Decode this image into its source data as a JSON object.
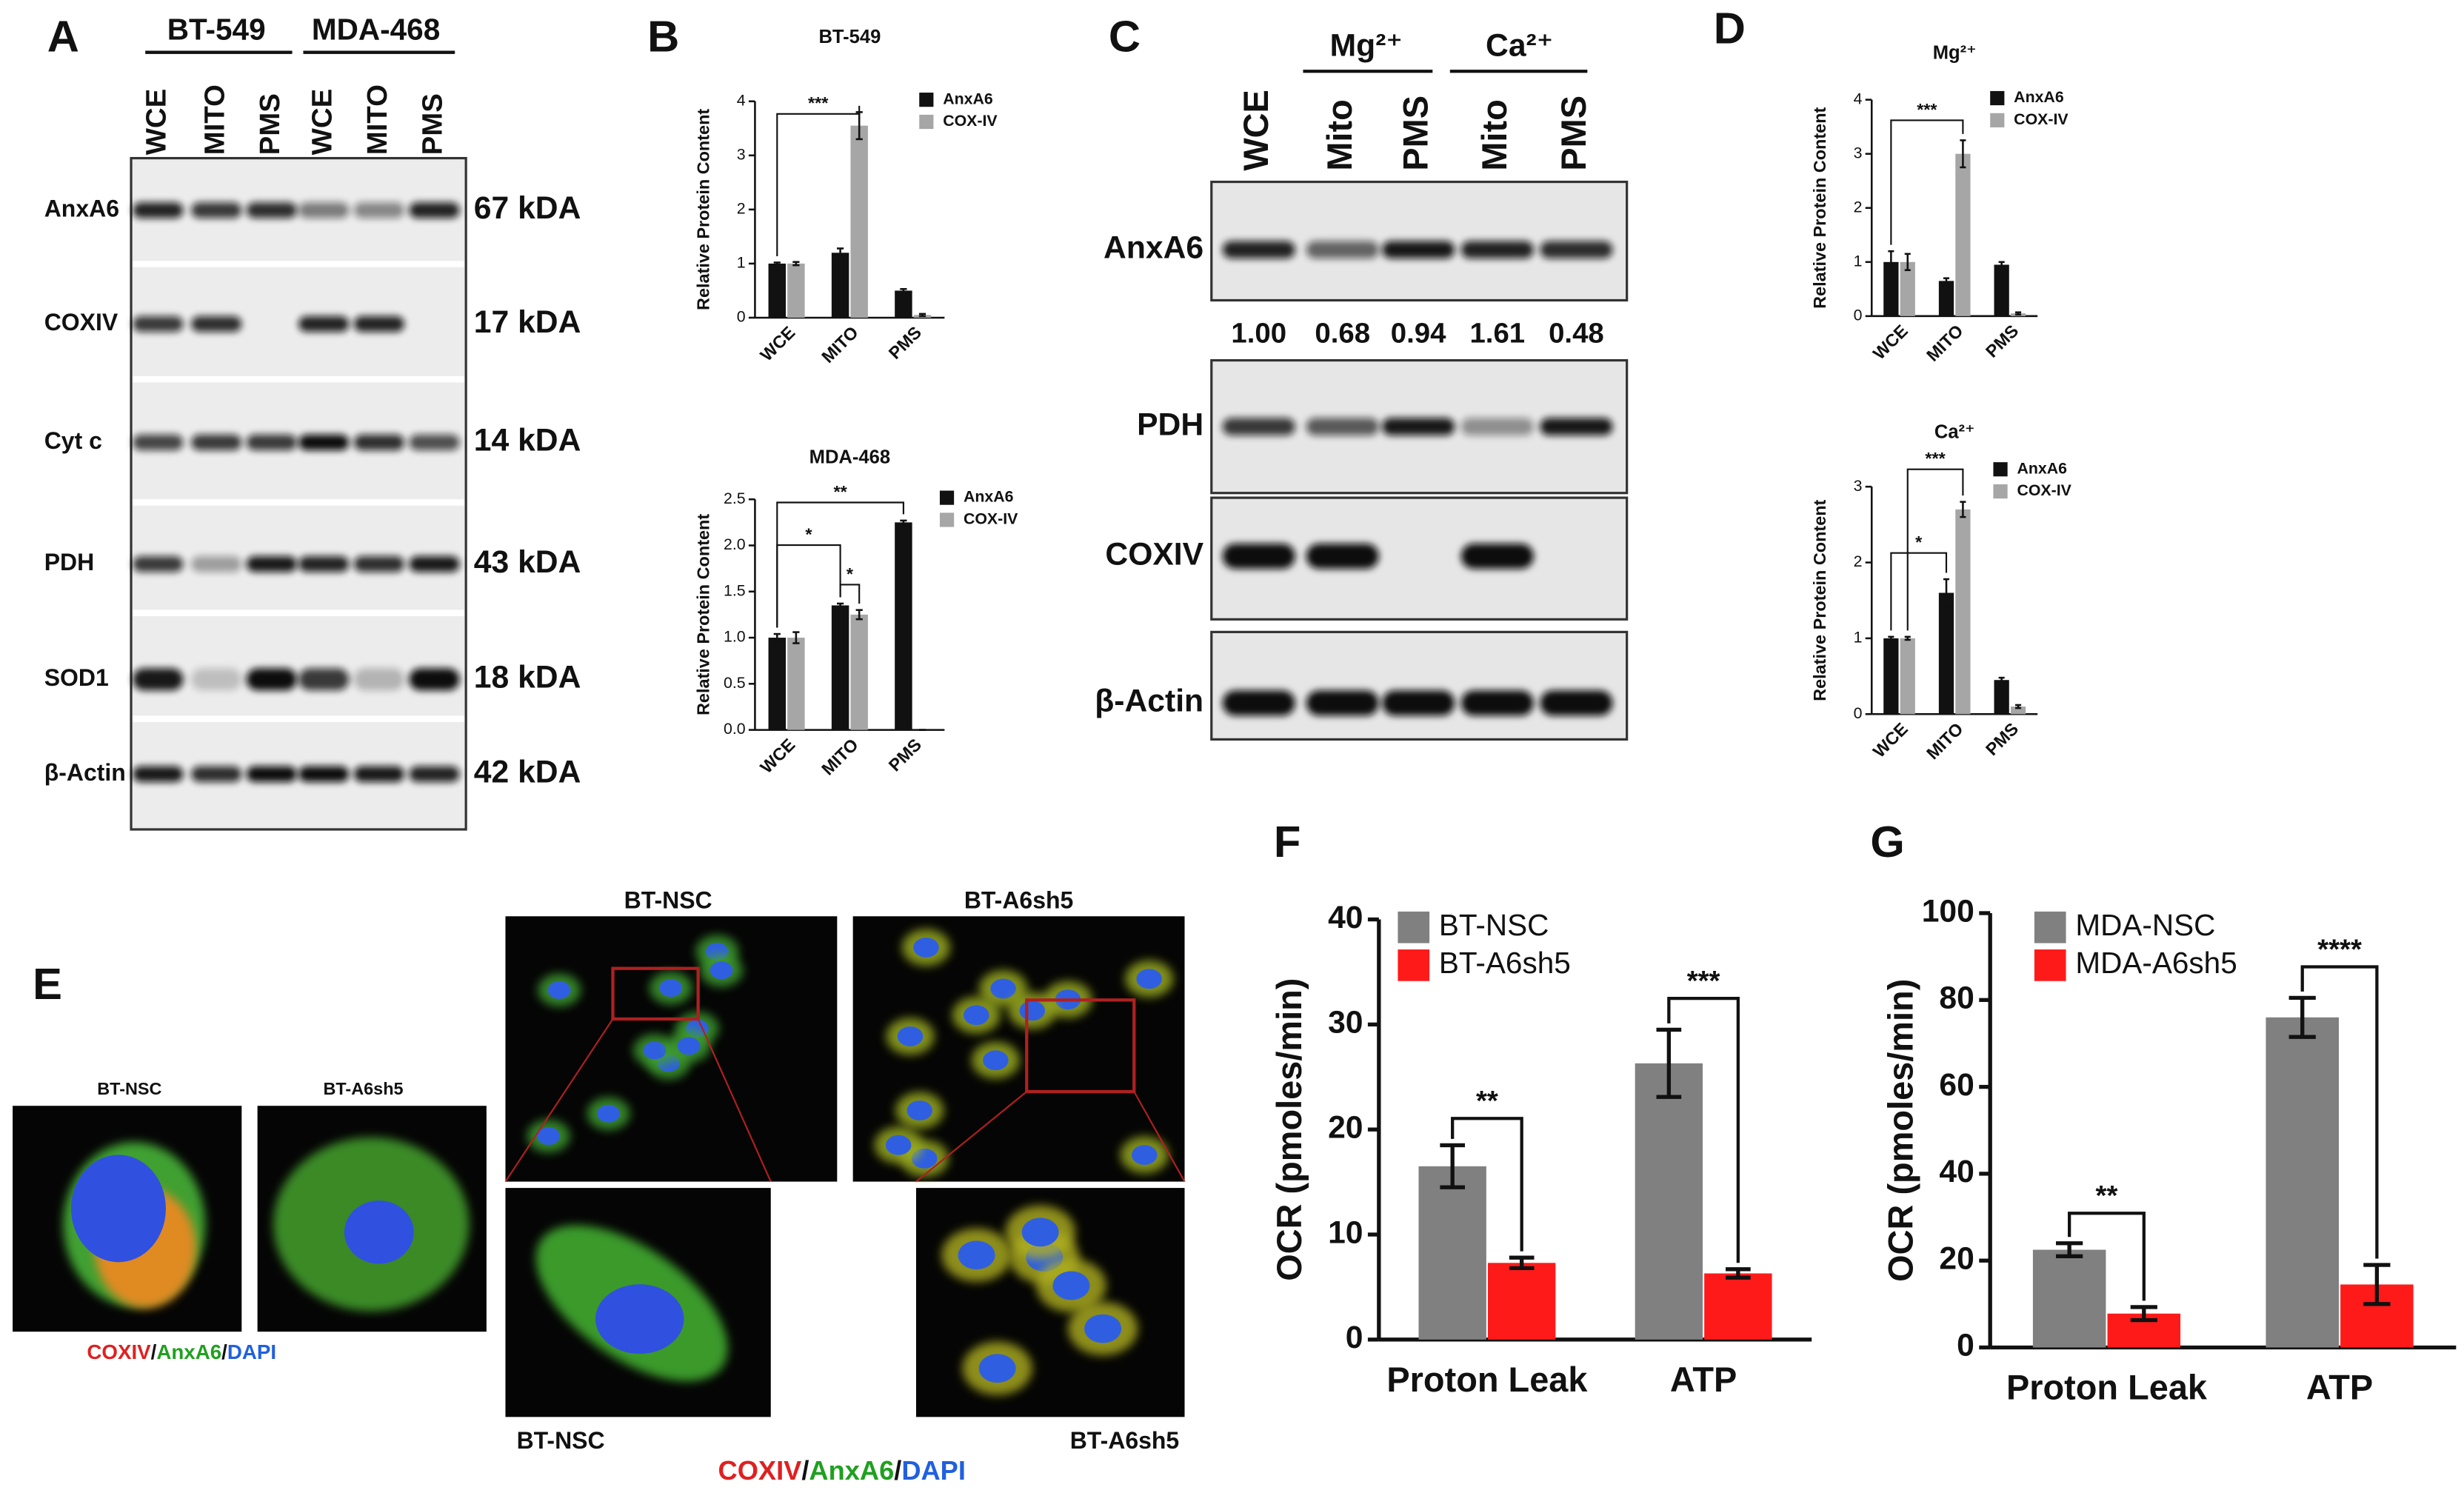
{
  "panel_letters": [
    "A",
    "B",
    "C",
    "D",
    "E",
    "F",
    "G"
  ],
  "blot_a": {
    "groups": [
      "BT-549",
      "MDA-468"
    ],
    "lanes": [
      "WCE",
      "MITO",
      "PMS",
      "WCE",
      "MITO",
      "PMS"
    ],
    "rows": [
      {
        "label": "AnxA6",
        "size": "67 kDA"
      },
      {
        "label": "COXIV",
        "size": "17 kDA"
      },
      {
        "label": "Cyt c",
        "size": "14 kDA"
      },
      {
        "label": "PDH",
        "size": "43 kDA"
      },
      {
        "label": "SOD1",
        "size": "18 kDA"
      },
      {
        "label": "β-Actin",
        "size": "42 kDA"
      }
    ]
  },
  "blot_c": {
    "groups": [
      "Mg²⁺",
      "Ca²⁺"
    ],
    "lanes": [
      "WCE",
      "Mito",
      "PMS",
      "Mito",
      "PMS"
    ],
    "rows": [
      "AnxA6",
      "PDH",
      "COXIV",
      "β-Actin"
    ],
    "quantification": [
      "1.00",
      "0.68",
      "0.94",
      "1.61",
      "0.48"
    ]
  },
  "microscopy": {
    "labels": [
      "BT-NSC",
      "BT-A6sh5"
    ],
    "stain_parts": [
      "COXIV",
      "AnxA6",
      "DAPI"
    ],
    "stain_separator": "/"
  },
  "chart_data": [
    {
      "type": "bar",
      "title": "BT-549",
      "ylabel": "Relative Protein Content",
      "categories": [
        "WCE",
        "MITO",
        "PMS"
      ],
      "series": [
        {
          "name": "AnxA6",
          "color": "#111111",
          "values": [
            1.0,
            1.2,
            0.5
          ],
          "errors": [
            0.02,
            0.08,
            0.03
          ]
        },
        {
          "name": "COX-IV",
          "color": "#a6a6a6",
          "values": [
            1.0,
            3.55,
            0.05
          ],
          "errors": [
            0.03,
            0.25,
            0.02
          ]
        }
      ],
      "ylim": [
        0,
        4
      ],
      "yticks": [
        0,
        1,
        2,
        3,
        4
      ],
      "annotations": [
        "***"
      ]
    },
    {
      "type": "bar",
      "title": "MDA-468",
      "ylabel": "Relative Protein Content",
      "categories": [
        "WCE",
        "MITO",
        "PMS"
      ],
      "series": [
        {
          "name": "AnxA6",
          "color": "#111111",
          "values": [
            1.0,
            1.35,
            2.25
          ],
          "errors": [
            0.04,
            0.02,
            0.02
          ]
        },
        {
          "name": "COX-IV",
          "color": "#a6a6a6",
          "values": [
            1.0,
            1.25,
            0
          ],
          "errors": [
            0.06,
            0.05,
            0
          ]
        }
      ],
      "ylim": [
        0,
        2.5
      ],
      "yticks": [
        {
          "value": 0,
          "label": "0.0"
        },
        0.5,
        {
          "value": 1,
          "label": "1.0"
        },
        1.5,
        {
          "value": 2,
          "label": "2.0"
        },
        2.5
      ],
      "annotations": [
        "*",
        "*",
        "**"
      ]
    },
    {
      "type": "bar",
      "title": "Mg²⁺",
      "ylabel": "Relative Protein Content",
      "categories": [
        "WCE",
        "MITO",
        "PMS"
      ],
      "series": [
        {
          "name": "AnxA6",
          "color": "#111111",
          "values": [
            1.0,
            0.65,
            0.95
          ],
          "errors": [
            0.2,
            0.05,
            0.05
          ]
        },
        {
          "name": "COX-IV",
          "color": "#a6a6a6",
          "values": [
            1.0,
            3.0,
            0.05
          ],
          "errors": [
            0.15,
            0.25,
            0.02
          ]
        }
      ],
      "ylim": [
        0,
        4
      ],
      "yticks": [
        0,
        1,
        2,
        3,
        4
      ],
      "annotations": [
        "***"
      ]
    },
    {
      "type": "bar",
      "title": "Ca²⁺",
      "ylabel": "Relative Protein Content",
      "categories": [
        "WCE",
        "MITO",
        "PMS"
      ],
      "series": [
        {
          "name": "AnxA6",
          "color": "#111111",
          "values": [
            1.0,
            1.6,
            0.45
          ],
          "errors": [
            0.02,
            0.18,
            0.03
          ]
        },
        {
          "name": "COX-IV",
          "color": "#a6a6a6",
          "values": [
            1.0,
            2.7,
            0.1
          ],
          "errors": [
            0.02,
            0.1,
            0.02
          ]
        }
      ],
      "ylim": [
        0,
        3
      ],
      "yticks": [
        0,
        1,
        2,
        3
      ],
      "annotations": [
        "*",
        "***"
      ]
    },
    {
      "type": "bar",
      "ylabel": "OCR (pmoles/min)",
      "categories": [
        "Proton Leak",
        "ATP"
      ],
      "series": [
        {
          "name": "BT-NSC",
          "color": "#808080",
          "values": [
            16.5,
            26.3
          ],
          "errors": [
            2.0,
            3.2
          ]
        },
        {
          "name": "BT-A6sh5",
          "color": "#ff1a1a",
          "values": [
            7.3,
            6.3
          ],
          "errors": [
            0.5,
            0.4
          ]
        }
      ],
      "ylim": [
        0,
        40
      ],
      "yticks": [
        0,
        10,
        20,
        30,
        40
      ],
      "annotations": [
        "**",
        "***"
      ]
    },
    {
      "type": "bar",
      "ylabel": "OCR (pmoles/min)",
      "categories": [
        "Proton Leak",
        "ATP"
      ],
      "series": [
        {
          "name": "MDA-NSC",
          "color": "#808080",
          "values": [
            22.5,
            76
          ],
          "errors": [
            1.5,
            4.5
          ]
        },
        {
          "name": "MDA-A6sh5",
          "color": "#ff1a1a",
          "values": [
            7.8,
            14.5
          ],
          "errors": [
            1.5,
            4.5
          ]
        }
      ],
      "ylim": [
        0,
        100
      ],
      "yticks": [
        0,
        20,
        40,
        60,
        80,
        100
      ],
      "annotations": [
        "**",
        "****"
      ]
    }
  ]
}
